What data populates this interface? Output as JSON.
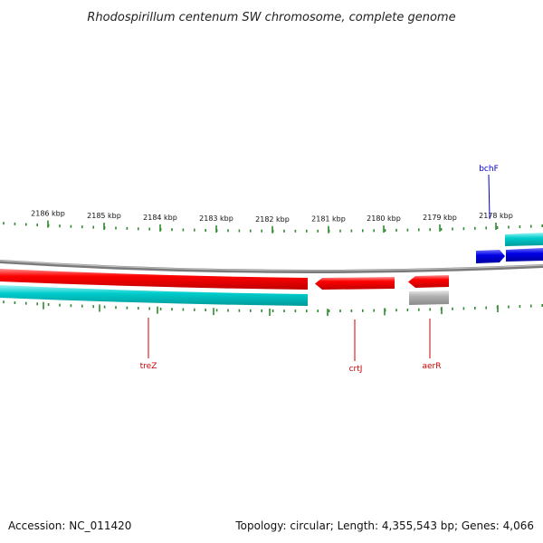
{
  "title": "Rhodospirillum centenum SW chromosome, complete genome",
  "footer": {
    "accession": "Accession: NC_011420",
    "summary": "Topology: circular; Length: 4,355,543 bp; Genes: 4,066"
  },
  "scale_labels": [
    "2186 kbp",
    "2185 kbp",
    "2184 kbp",
    "2183 kbp",
    "2182 kbp",
    "2181 kbp",
    "2180 kbp",
    "2179 kbp",
    "2178 kbp"
  ],
  "genes": {
    "treZ": "treZ",
    "crtJ": "crtJ",
    "aerR": "aerR",
    "bchF": "bchF"
  },
  "colors": {
    "forward_gene": "#0000e0",
    "reverse_gene": "#ff0000",
    "cyan_band": "#00c8c8",
    "grey_gene": "#aaaaaa",
    "tick": "#2e8b2e",
    "backbone": "#888888"
  }
}
